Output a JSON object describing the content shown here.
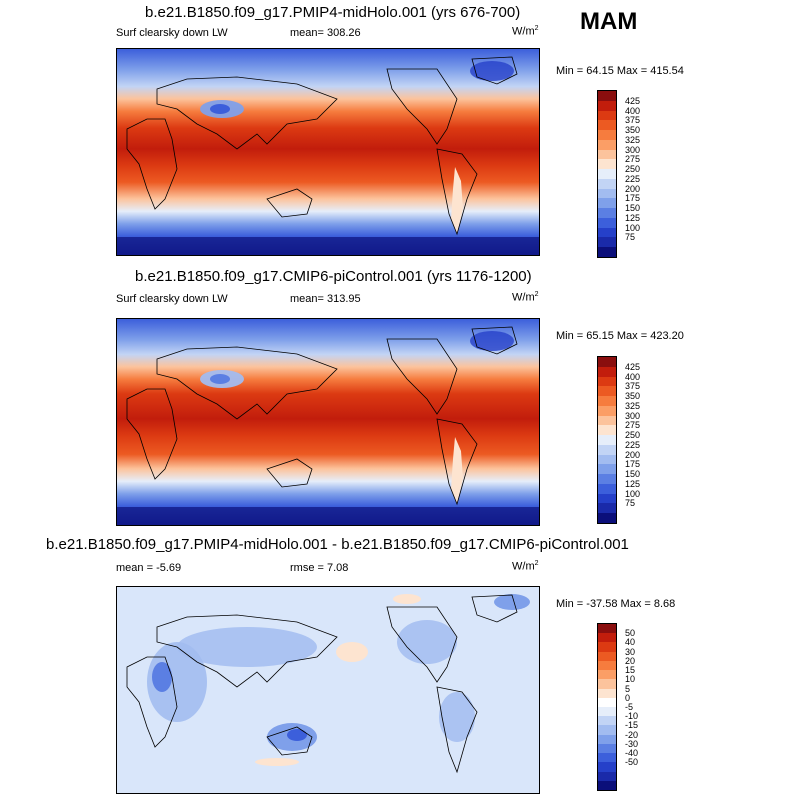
{
  "season": "MAM",
  "units_base": "W/m",
  "units_exp": "2",
  "panels": [
    {
      "title": "b.e21.B1850.f09_g17.PMIP4-midHolo.001 (yrs 676-700)",
      "variable": "Surf clearsky down LW",
      "mean_label": "mean=",
      "mean": "308.26",
      "min_label": "Min =",
      "min": "64.15",
      "max_label": "Max =",
      "max": "415.54",
      "palette": [
        "#8a0e0e",
        "#c21d0c",
        "#dc3a12",
        "#ec5a22",
        "#f67c3e",
        "#fb9e66",
        "#fcc39c",
        "#fde4d0",
        "#e6eefa",
        "#c2d4f5",
        "#a2bcf0",
        "#7fa0ea",
        "#5b7fe3",
        "#3c5fdb",
        "#2540c9",
        "#1a2aa9",
        "#0b0f7a"
      ],
      "ticks": [
        "425",
        "400",
        "375",
        "350",
        "325",
        "300",
        "275",
        "250",
        "225",
        "200",
        "175",
        "150",
        "125",
        "100",
        "75"
      ]
    },
    {
      "title": "b.e21.B1850.f09_g17.CMIP6-piControl.001 (yrs 1176-1200)",
      "variable": "Surf clearsky down LW",
      "mean_label": "mean=",
      "mean": "313.95",
      "min_label": "Min =",
      "min": "65.15",
      "max_label": "Max =",
      "max": "423.20",
      "palette": [
        "#8a0e0e",
        "#c21d0c",
        "#dc3a12",
        "#ec5a22",
        "#f67c3e",
        "#fb9e66",
        "#fcc39c",
        "#fde4d0",
        "#e6eefa",
        "#c2d4f5",
        "#a2bcf0",
        "#7fa0ea",
        "#5b7fe3",
        "#3c5fdb",
        "#2540c9",
        "#1a2aa9",
        "#0b0f7a"
      ],
      "ticks": [
        "425",
        "400",
        "375",
        "350",
        "325",
        "300",
        "275",
        "250",
        "225",
        "200",
        "175",
        "150",
        "125",
        "100",
        "75"
      ]
    },
    {
      "title": "b.e21.B1850.f09_g17.PMIP4-midHolo.001 - b.e21.B1850.f09_g17.CMIP6-piControl.001",
      "variable": "",
      "mean_label": "mean =",
      "mean": "-5.69",
      "rmse_label": "rmse =",
      "rmse": "7.08",
      "min_label": "Min =",
      "min": "-37.58",
      "max_label": "Max =",
      "max": "8.68",
      "palette": [
        "#8a0e0e",
        "#c21d0c",
        "#dc3a12",
        "#ec5a22",
        "#f67c3e",
        "#fb9e66",
        "#fcc39c",
        "#fde4d0",
        "#ffffff",
        "#e6eefa",
        "#c2d4f5",
        "#a2bcf0",
        "#7fa0ea",
        "#5b7fe3",
        "#3c5fdb",
        "#2540c9",
        "#1a2aa9",
        "#0b0f7a"
      ],
      "ticks": [
        "50",
        "40",
        "30",
        "20",
        "15",
        "10",
        "5",
        "0",
        "-5",
        "-10",
        "-15",
        "-20",
        "-30",
        "-40",
        "-50"
      ]
    }
  ],
  "chart_data": [
    {
      "type": "heatmap",
      "title": "b.e21.B1850.f09_g17.PMIP4-midHolo.001 (yrs 676-700)",
      "subtitle": "Surf clearsky down LW",
      "units": "W/m2",
      "mean": 308.26,
      "min": 64.15,
      "max": 415.54,
      "colorbar_levels": [
        75,
        100,
        125,
        150,
        175,
        200,
        225,
        250,
        275,
        300,
        325,
        350,
        375,
        400,
        425
      ]
    },
    {
      "type": "heatmap",
      "title": "b.e21.B1850.f09_g17.CMIP6-piControl.001 (yrs 1176-1200)",
      "subtitle": "Surf clearsky down LW",
      "units": "W/m2",
      "mean": 313.95,
      "min": 65.15,
      "max": 423.2,
      "colorbar_levels": [
        75,
        100,
        125,
        150,
        175,
        200,
        225,
        250,
        275,
        300,
        325,
        350,
        375,
        400,
        425
      ]
    },
    {
      "type": "heatmap",
      "title": "b.e21.B1850.f09_g17.PMIP4-midHolo.001 - b.e21.B1850.f09_g17.CMIP6-piControl.001",
      "units": "W/m2",
      "mean": -5.69,
      "rmse": 7.08,
      "min": -37.58,
      "max": 8.68,
      "colorbar_levels": [
        -50,
        -40,
        -30,
        -20,
        -15,
        -10,
        -5,
        0,
        5,
        10,
        15,
        20,
        30,
        40,
        50
      ]
    }
  ]
}
